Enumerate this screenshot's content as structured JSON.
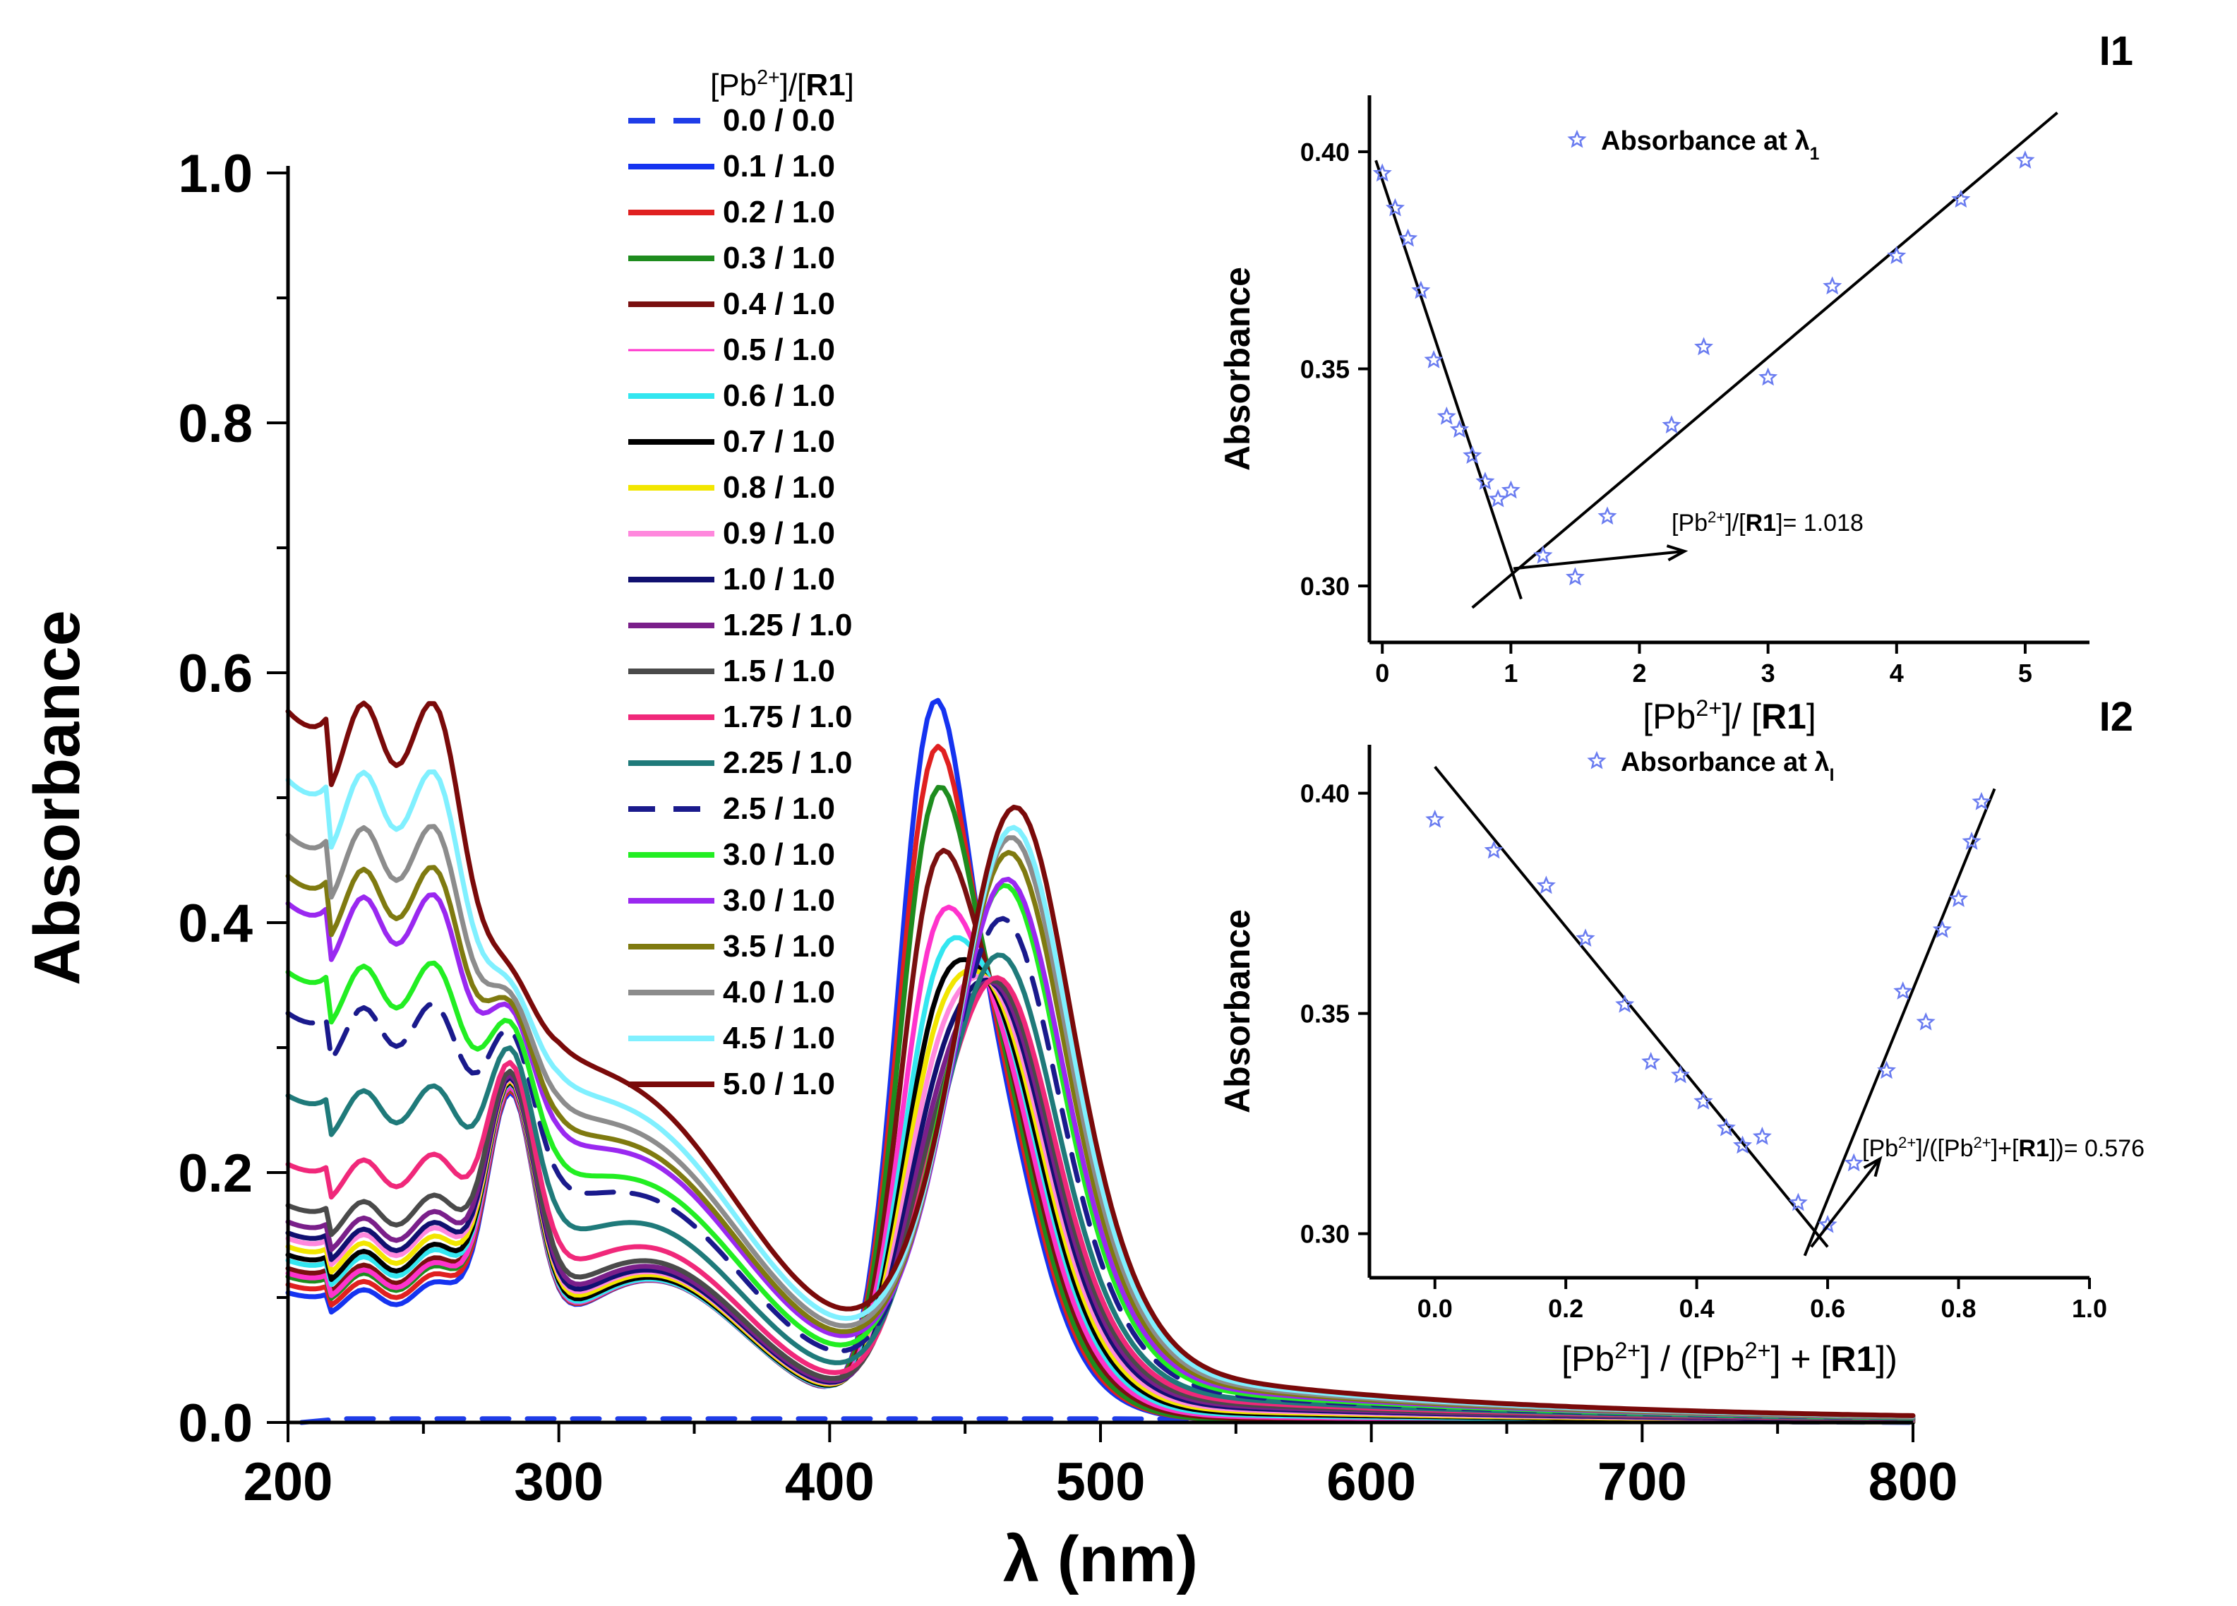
{
  "chart_data": [
    {
      "id": "main",
      "type": "line",
      "xlabel": "λ (nm)",
      "ylabel": "Absorbance",
      "xlim": [
        200,
        800
      ],
      "ylim": [
        0.0,
        1.0
      ],
      "xticks": [
        "200",
        "300",
        "400",
        "500",
        "600",
        "700",
        "800"
      ],
      "yticks": [
        "0.0",
        "0.2",
        "0.4",
        "0.6",
        "0.8",
        "1.0"
      ],
      "legend_title": {
        "prefix": "[Pb",
        "sup": "2+",
        "mid": "]/[",
        "bold": "R1",
        "suffix": "]"
      },
      "series": [
        {
          "name": "0.0 / 0.0",
          "color": "#1f3de8",
          "dash": true,
          "points": [
            [
              205,
              0.0
            ],
            [
              220,
              0.003
            ],
            [
              300,
              0.003
            ],
            [
              400,
              0.003
            ],
            [
              500,
              0.003
            ],
            [
              800,
              0.0
            ]
          ]
        },
        {
          "name": "0.1 / 1.0",
          "color": "#1533f0",
          "dash": false,
          "s": 0.8,
          "split": 1.0,
          "p1": 0.404,
          "p2": 0.391,
          "p3": 0.0
        },
        {
          "name": "0.2 / 1.0",
          "color": "#e02020",
          "dash": false,
          "s": 0.85,
          "split": 0.9,
          "p1": 0.393,
          "p2": 0.385,
          "p3": 0.0
        },
        {
          "name": "0.3 / 1.0",
          "color": "#1e8c1e",
          "dash": false,
          "s": 0.9,
          "split": 0.8,
          "p1": 0.385,
          "p2": 0.379,
          "p3": 0.0
        },
        {
          "name": "0.4 / 1.0",
          "color": "#7a1010",
          "dash": false,
          "s": 0.95,
          "split": 0.7,
          "p1": 0.36,
          "p2": 0.365,
          "p3": 0.05
        },
        {
          "name": "0.5 / 1.0",
          "color": "#ff33cc",
          "dash": false,
          "s": 0.92,
          "split": 0.6,
          "p1": 0.34,
          "p2": 0.345,
          "p3": 0.1,
          "thin": true
        },
        {
          "name": "0.6 / 1.0",
          "color": "#33e6f0",
          "dash": false,
          "s": 1.0,
          "split": 0.5,
          "p1": 0.33,
          "p2": 0.34,
          "p3": 0.15
        },
        {
          "name": "0.7 / 1.0",
          "color": "#000000",
          "dash": false,
          "s": 1.02,
          "split": 0.45,
          "p1": 0.32,
          "p2": 0.33,
          "p3": 0.2
        },
        {
          "name": "0.8 / 1.0",
          "color": "#f2e600",
          "dash": false,
          "s": 1.05,
          "split": 0.4,
          "p1": 0.315,
          "p2": 0.325,
          "p3": 0.25
        },
        {
          "name": "0.9 / 1.0",
          "color": "#ff88dd",
          "dash": false,
          "s": 1.08,
          "split": 0.35,
          "p1": 0.31,
          "p2": 0.32,
          "p3": 0.3
        },
        {
          "name": "1.0 / 1.0",
          "color": "#101070",
          "dash": false,
          "s": 1.1,
          "split": 0.3,
          "p1": 0.305,
          "p2": 0.315,
          "p3": 0.35
        },
        {
          "name": "1.25 / 1.0",
          "color": "#7a1f8a",
          "dash": false,
          "s": 1.14,
          "split": 0.25,
          "p1": 0.3,
          "p2": 0.31,
          "p3": 0.4
        },
        {
          "name": "1.5 / 1.0",
          "color": "#4a4a4a",
          "dash": false,
          "s": 1.2,
          "split": 0.2,
          "p1": 0.3,
          "p2": 0.305,
          "p3": 0.45
        },
        {
          "name": "1.75 / 1.0",
          "color": "#f0287a",
          "dash": false,
          "s": 1.35,
          "split": 0.15,
          "p1": 0.3,
          "p2": 0.3,
          "p3": 0.5
        },
        {
          "name": "2.25 / 1.0",
          "color": "#1f7a7a",
          "dash": false,
          "s": 1.6,
          "split": 0.1,
          "p1": 0.3,
          "p2": 0.31,
          "p3": 0.55
        },
        {
          "name": "2.5 / 1.0",
          "color": "#1a1a8c",
          "dash": true,
          "s": 1.9,
          "split": 0.05,
          "p1": 0.3,
          "p2": 0.33,
          "p3": 0.6
        },
        {
          "name": "3.0 / 1.0",
          "color": "#22ee22",
          "dash": false,
          "s": 2.05,
          "split": 0.05,
          "p1": 0.3,
          "p2": 0.355,
          "p3": 0.65
        },
        {
          "name": "3.0 / 1.0",
          "color": "#9a28f0",
          "dash": false,
          "s": 2.3,
          "split": 0.0,
          "p1": 0.3,
          "p2": 0.35,
          "p3": 0.7
        },
        {
          "name": "3.5 / 1.0",
          "color": "#7f7a10",
          "dash": false,
          "s": 2.4,
          "split": 0.0,
          "p1": 0.3,
          "p2": 0.37,
          "p3": 0.75
        },
        {
          "name": "4.0 / 1.0",
          "color": "#8c8c8c",
          "dash": false,
          "s": 2.55,
          "split": 0.0,
          "p1": 0.3,
          "p2": 0.38,
          "p3": 0.8
        },
        {
          "name": "4.5  / 1.0",
          "color": "#80f0ff",
          "dash": false,
          "s": 2.75,
          "split": 0.0,
          "p1": 0.3,
          "p2": 0.385,
          "p3": 0.85
        },
        {
          "name": "5.0 / 1.0",
          "color": "#7a0a0a",
          "dash": false,
          "s": 3.0,
          "split": 0.0,
          "p1": 0.3,
          "p2": 0.398,
          "p3": 0.9
        }
      ]
    },
    {
      "id": "I1",
      "type": "scatter",
      "tag": "I1",
      "xlabel": {
        "prefix": "[Pb",
        "sup": "2+",
        "mid": "]/ [",
        "bold": "R1",
        "suffix": "]"
      },
      "ylabel": "Absorbance",
      "xlim": [
        -0.1,
        5.5
      ],
      "ylim": [
        0.287,
        0.413
      ],
      "xticks": [
        "0",
        "1",
        "2",
        "3",
        "4",
        "5"
      ],
      "yticks": [
        "0.30",
        "0.35",
        "0.40"
      ],
      "legend": {
        "text": "Absorbance at λ",
        "sub": "1"
      },
      "points": [
        [
          0.0,
          0.395
        ],
        [
          0.1,
          0.387
        ],
        [
          0.2,
          0.38
        ],
        [
          0.3,
          0.368
        ],
        [
          0.4,
          0.352
        ],
        [
          0.5,
          0.339
        ],
        [
          0.6,
          0.336
        ],
        [
          0.7,
          0.33
        ],
        [
          0.8,
          0.324
        ],
        [
          0.9,
          0.32
        ],
        [
          1.0,
          0.322
        ],
        [
          1.25,
          0.307
        ],
        [
          1.5,
          0.302
        ],
        [
          1.75,
          0.316
        ],
        [
          2.25,
          0.337
        ],
        [
          2.5,
          0.355
        ],
        [
          3.0,
          0.348
        ],
        [
          3.5,
          0.369
        ],
        [
          4.0,
          0.376
        ],
        [
          4.5,
          0.389
        ],
        [
          5.0,
          0.398
        ]
      ],
      "fit_lines": [
        [
          [
            -0.05,
            0.398
          ],
          [
            1.08,
            0.297
          ]
        ],
        [
          [
            0.7,
            0.295
          ],
          [
            5.25,
            0.409
          ]
        ]
      ],
      "annotation": {
        "prefix": "[Pb",
        "sup": "2+",
        "mid": "]/[",
        "bold": "R1",
        "suffix": "]= 1.018",
        "arrow_from": [
          1.02,
          0.304
        ],
        "arrow_to": [
          2.35,
          0.308
        ]
      }
    },
    {
      "id": "I2",
      "type": "scatter",
      "tag": "I2",
      "xlabel": {
        "prefix": "[Pb",
        "sup": "2+",
        "mid": "] / ([Pb",
        "sup2": "2+",
        "mid2": "] + [",
        "bold": "R1",
        "suffix": "])"
      },
      "ylabel": "Absorbance",
      "xlim": [
        -0.1,
        1.0
      ],
      "ylim": [
        0.29,
        0.411
      ],
      "xticks": [
        "0.0",
        "0.2",
        "0.4",
        "0.6",
        "0.8",
        "1.0"
      ],
      "yticks": [
        "0.30",
        "0.35",
        "0.40"
      ],
      "legend": {
        "text": "Absorbance at λ",
        "sub": "I"
      },
      "points": [
        [
          0.0,
          0.394
        ],
        [
          0.09,
          0.387
        ],
        [
          0.17,
          0.379
        ],
        [
          0.23,
          0.367
        ],
        [
          0.29,
          0.352
        ],
        [
          0.33,
          0.339
        ],
        [
          0.375,
          0.336
        ],
        [
          0.41,
          0.33
        ],
        [
          0.445,
          0.324
        ],
        [
          0.47,
          0.32
        ],
        [
          0.5,
          0.322
        ],
        [
          0.555,
          0.307
        ],
        [
          0.6,
          0.302
        ],
        [
          0.64,
          0.316
        ],
        [
          0.69,
          0.337
        ],
        [
          0.715,
          0.355
        ],
        [
          0.75,
          0.348
        ],
        [
          0.775,
          0.369
        ],
        [
          0.8,
          0.376
        ],
        [
          0.82,
          0.389
        ],
        [
          0.835,
          0.398
        ]
      ],
      "fit_lines": [
        [
          [
            0.0,
            0.406
          ],
          [
            0.6,
            0.297
          ]
        ],
        [
          [
            0.565,
            0.295
          ],
          [
            0.855,
            0.401
          ]
        ]
      ],
      "annotation": {
        "prefix": "[Pb",
        "sup": "2+",
        "mid": "]/([Pb",
        "sup2": "2+",
        "mid2": "]+[",
        "bold": "R1",
        "suffix": "])= 0.576",
        "arrow_from": [
          0.575,
          0.297
        ],
        "arrow_to": [
          0.68,
          0.317
        ]
      }
    }
  ]
}
